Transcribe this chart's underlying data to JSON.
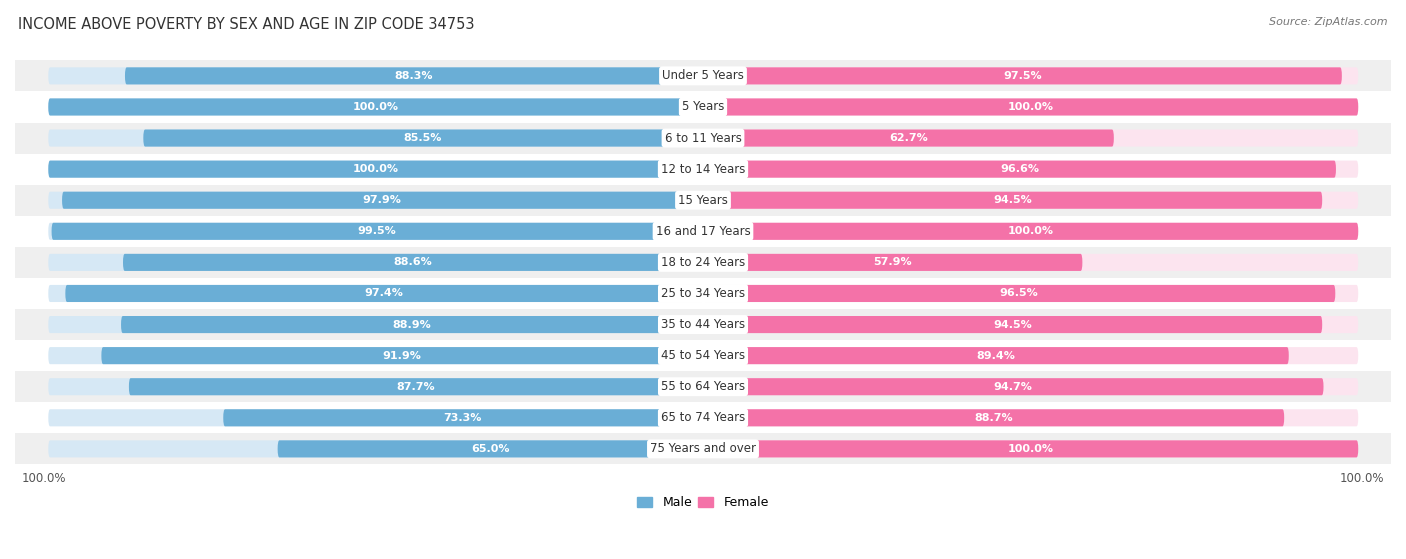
{
  "title": "INCOME ABOVE POVERTY BY SEX AND AGE IN ZIP CODE 34753",
  "source": "Source: ZipAtlas.com",
  "categories": [
    "Under 5 Years",
    "5 Years",
    "6 to 11 Years",
    "12 to 14 Years",
    "15 Years",
    "16 and 17 Years",
    "18 to 24 Years",
    "25 to 34 Years",
    "35 to 44 Years",
    "45 to 54 Years",
    "55 to 64 Years",
    "65 to 74 Years",
    "75 Years and over"
  ],
  "male_values": [
    88.3,
    100.0,
    85.5,
    100.0,
    97.9,
    99.5,
    88.6,
    97.4,
    88.9,
    91.9,
    87.7,
    73.3,
    65.0
  ],
  "female_values": [
    97.5,
    100.0,
    62.7,
    96.6,
    94.5,
    100.0,
    57.9,
    96.5,
    94.5,
    89.4,
    94.7,
    88.7,
    100.0
  ],
  "male_color": "#6aaed6",
  "female_color": "#f472a8",
  "male_bg_color": "#d6e8f5",
  "female_bg_color": "#fce4ef",
  "row_colors": [
    "#efefef",
    "#ffffff"
  ],
  "title_fontsize": 10.5,
  "label_fontsize": 8.5,
  "value_fontsize": 8,
  "legend_fontsize": 9,
  "x_axis_label_left": "100.0%",
  "x_axis_label_right": "100.0%"
}
